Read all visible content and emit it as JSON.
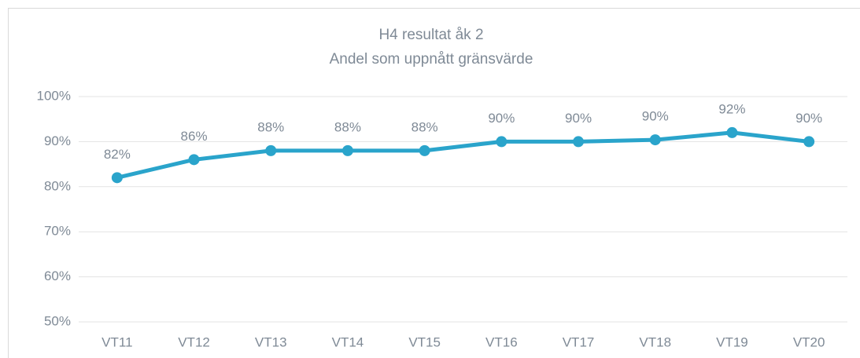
{
  "chart_data": {
    "type": "line",
    "title": "H4 resultat åk 2",
    "subtitle": "Andel som uppnått gränsvärde",
    "categories": [
      "VT11",
      "VT12",
      "VT13",
      "VT14",
      "VT15",
      "VT16",
      "VT17",
      "VT18",
      "VT19",
      "VT20"
    ],
    "series": [
      {
        "name": "H4",
        "color": "#2aa4cb",
        "values": [
          82,
          86,
          88,
          88,
          88,
          90,
          90,
          90.4,
          92,
          90
        ],
        "value_labels": [
          "82%",
          "86%",
          "88%",
          "88%",
          "88%",
          "90%",
          "90%",
          "90%",
          "92%",
          "90%"
        ]
      }
    ],
    "ylim": [
      50,
      100
    ],
    "yticks": [
      {
        "value": 50,
        "label": "50%"
      },
      {
        "value": 60,
        "label": "60%"
      },
      {
        "value": 70,
        "label": "70%"
      },
      {
        "value": 80,
        "label": "80%"
      },
      {
        "value": 90,
        "label": "90%"
      },
      {
        "value": 100,
        "label": "100%"
      }
    ],
    "grid": true
  }
}
